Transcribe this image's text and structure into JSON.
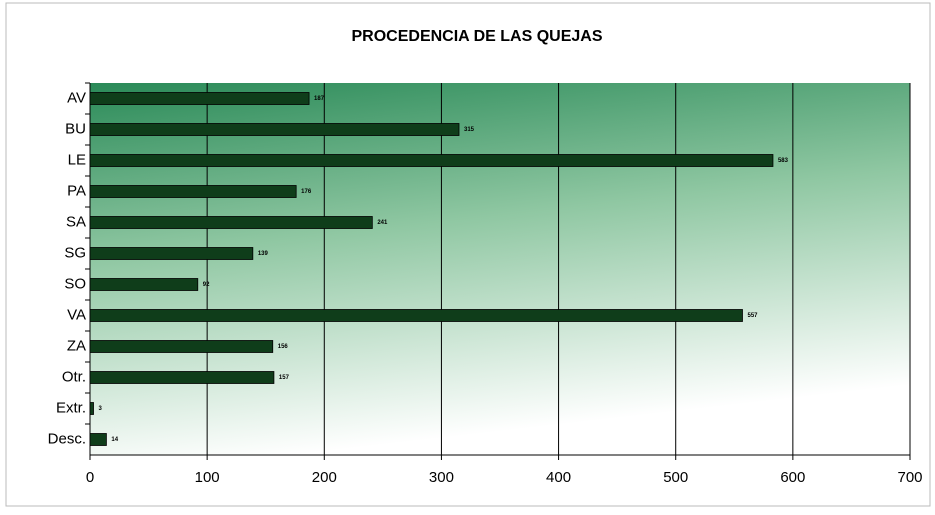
{
  "chart_data": {
    "type": "bar",
    "orientation": "horizontal",
    "title": "PROCEDENCIA DE LAS QUEJAS",
    "categories": [
      "AV",
      "BU",
      "LE",
      "PA",
      "SA",
      "SG",
      "SO",
      "VA",
      "ZA",
      "Otr.",
      "Extr.",
      "Desc."
    ],
    "values": [
      187,
      315,
      583,
      176,
      241,
      139,
      92,
      557,
      156,
      157,
      3,
      14
    ],
    "color": "#0f3d1a",
    "xlim": [
      0,
      700
    ],
    "xticks": [
      0,
      100,
      200,
      300,
      400,
      500,
      600,
      700
    ],
    "grid": true
  }
}
